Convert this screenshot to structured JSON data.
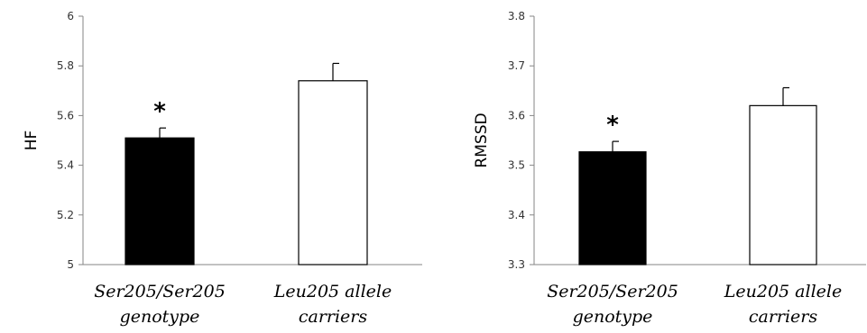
{
  "chart_data": [
    {
      "type": "bar",
      "ylabel": "HF",
      "ylim": [
        5,
        6
      ],
      "yticks": [
        "5",
        "5.2",
        "5.4",
        "5.6",
        "5.8",
        "6"
      ],
      "categories": [
        [
          "Ser205/Ser205",
          "genotype"
        ],
        [
          "Leu205 allele",
          "carriers"
        ]
      ],
      "values": [
        5.51,
        5.74
      ],
      "error_upper": [
        5.55,
        5.81
      ],
      "fill_colors": [
        "#000000",
        "#ffffff"
      ],
      "annotations": [
        "*",
        ""
      ]
    },
    {
      "type": "bar",
      "ylabel": "RMSSD",
      "ylim": [
        3.3,
        3.8
      ],
      "yticks": [
        "3.3",
        "3.4",
        "3.5",
        "3.6",
        "3.7",
        "3.8"
      ],
      "categories": [
        [
          "Ser205/Ser205",
          "genotype"
        ],
        [
          "Leu205 allele",
          "carriers"
        ]
      ],
      "values": [
        3.527,
        3.62
      ],
      "error_upper": [
        3.548,
        3.656
      ],
      "fill_colors": [
        "#000000",
        "#ffffff"
      ],
      "annotations": [
        "*",
        ""
      ]
    }
  ]
}
